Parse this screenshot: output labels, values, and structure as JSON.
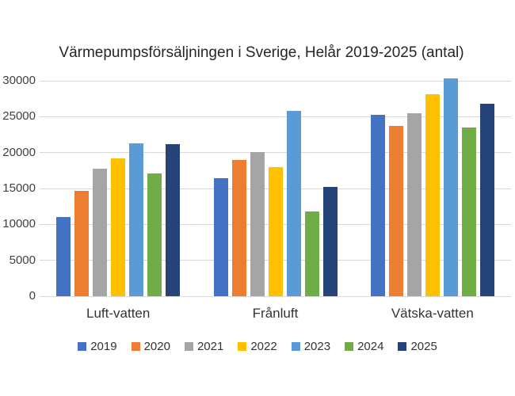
{
  "chart_data": {
    "type": "bar",
    "title": "Värmepumpsförsäljningen i Sverige, Helår 2019-2025 (antal)",
    "categories": [
      "Luft-vatten",
      "Frånluft",
      "Vätska-vatten"
    ],
    "series": [
      {
        "name": "2019",
        "color": "#4472C4",
        "values": [
          11000,
          16400,
          25300
        ]
      },
      {
        "name": "2020",
        "color": "#ED7D31",
        "values": [
          14700,
          19000,
          23700
        ]
      },
      {
        "name": "2021",
        "color": "#A5A5A5",
        "values": [
          17800,
          20100,
          25500
        ]
      },
      {
        "name": "2022",
        "color": "#FFC000",
        "values": [
          19200,
          18000,
          28100
        ]
      },
      {
        "name": "2023",
        "color": "#5B9BD5",
        "values": [
          21300,
          25800,
          30300
        ]
      },
      {
        "name": "2024",
        "color": "#70AD47",
        "values": [
          17100,
          11800,
          23500
        ]
      },
      {
        "name": "2025",
        "color": "#264478",
        "values": [
          21200,
          15200,
          26800
        ]
      }
    ],
    "xlabel": "",
    "ylabel": "",
    "ylim": [
      0,
      30000
    ],
    "ytick_step": 5000,
    "yticks": [
      "0",
      "5000",
      "10000",
      "15000",
      "20000",
      "25000",
      "30000"
    ],
    "grid": true,
    "legend_position": "bottom",
    "colors": {
      "gridline": "#D9D9D9",
      "axis_text": "#404040",
      "title_text": "#262626",
      "background": "#FFFFFF"
    }
  }
}
